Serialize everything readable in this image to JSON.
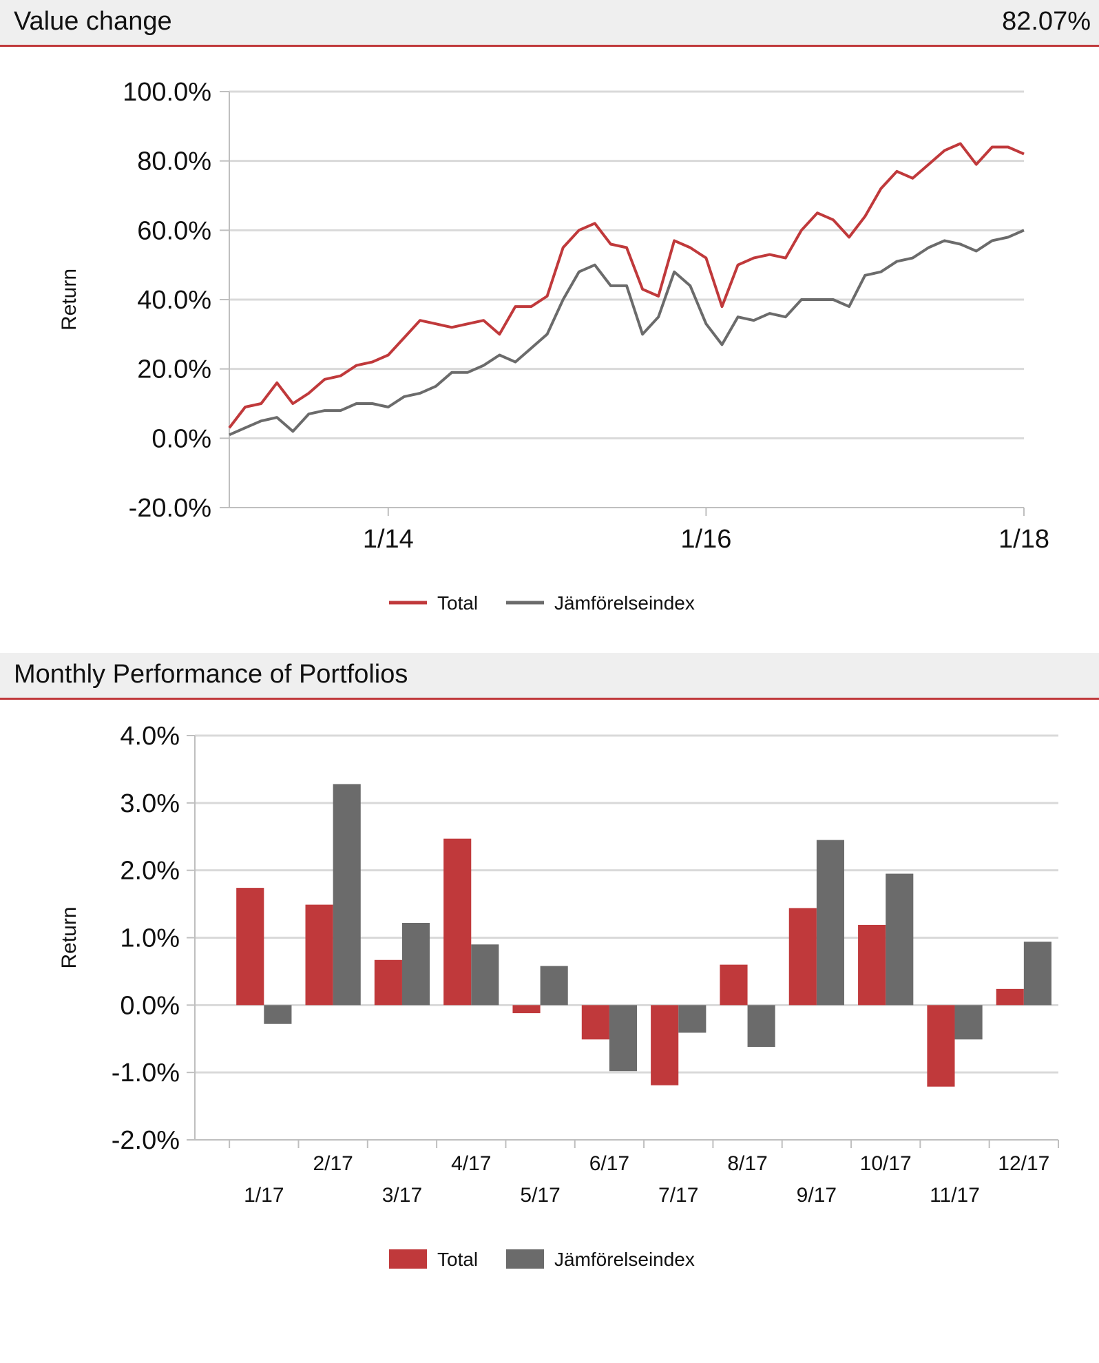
{
  "header1": {
    "title": "Value change",
    "value": "82.07%"
  },
  "header2": {
    "title": "Monthly Performance of Portfolios"
  },
  "colors": {
    "total": "#c0393b",
    "index": "#6b6b6b",
    "grid": "#d9d9d9",
    "axis": "#bfbfbf"
  },
  "chart_data": [
    {
      "type": "line",
      "ylabel": "Return",
      "ylim": [
        -20,
        100
      ],
      "yticks": [
        "100.0%",
        "80.0%",
        "60.0%",
        "40.0%",
        "20.0%",
        "0.0%",
        "-20.0%"
      ],
      "ytick_values": [
        100,
        80,
        60,
        40,
        20,
        0,
        -20
      ],
      "xlim": [
        2013.0,
        2018.0
      ],
      "xticks": [
        "1/14",
        "1/16",
        "1/18"
      ],
      "xtick_values": [
        2014.0,
        2016.0,
        2018.0
      ],
      "legend": [
        "Total",
        "Jämförelseindex"
      ],
      "legend_position": "bottom",
      "grid": true,
      "series": [
        {
          "name": "Total",
          "x": [
            2013.0,
            2013.1,
            2013.2,
            2013.3,
            2013.4,
            2013.5,
            2013.6,
            2013.7,
            2013.8,
            2013.9,
            2014.0,
            2014.1,
            2014.2,
            2014.3,
            2014.4,
            2014.5,
            2014.6,
            2014.7,
            2014.8,
            2014.9,
            2015.0,
            2015.1,
            2015.2,
            2015.3,
            2015.4,
            2015.5,
            2015.6,
            2015.7,
            2015.8,
            2015.9,
            2016.0,
            2016.1,
            2016.2,
            2016.3,
            2016.4,
            2016.5,
            2016.6,
            2016.7,
            2016.8,
            2016.9,
            2017.0,
            2017.1,
            2017.2,
            2017.3,
            2017.4,
            2017.5,
            2017.6,
            2017.7,
            2017.8,
            2017.9,
            2018.0
          ],
          "values": [
            3,
            9,
            10,
            16,
            10,
            13,
            17,
            18,
            21,
            22,
            24,
            29,
            34,
            33,
            32,
            33,
            34,
            30,
            38,
            38,
            41,
            55,
            60,
            62,
            56,
            55,
            43,
            41,
            57,
            55,
            52,
            38,
            50,
            52,
            53,
            52,
            60,
            65,
            63,
            58,
            64,
            72,
            77,
            75,
            79,
            83,
            85,
            79,
            84,
            84,
            82
          ]
        },
        {
          "name": "Jämförelseindex",
          "x": [
            2013.0,
            2013.1,
            2013.2,
            2013.3,
            2013.4,
            2013.5,
            2013.6,
            2013.7,
            2013.8,
            2013.9,
            2014.0,
            2014.1,
            2014.2,
            2014.3,
            2014.4,
            2014.5,
            2014.6,
            2014.7,
            2014.8,
            2014.9,
            2015.0,
            2015.1,
            2015.2,
            2015.3,
            2015.4,
            2015.5,
            2015.6,
            2015.7,
            2015.8,
            2015.9,
            2016.0,
            2016.1,
            2016.2,
            2016.3,
            2016.4,
            2016.5,
            2016.6,
            2016.7,
            2016.8,
            2016.9,
            2017.0,
            2017.1,
            2017.2,
            2017.3,
            2017.4,
            2017.5,
            2017.6,
            2017.7,
            2017.8,
            2017.9,
            2018.0
          ],
          "values": [
            1,
            3,
            5,
            6,
            2,
            7,
            8,
            8,
            10,
            10,
            9,
            12,
            13,
            15,
            19,
            19,
            21,
            24,
            22,
            26,
            30,
            40,
            48,
            50,
            44,
            44,
            30,
            35,
            48,
            44,
            33,
            27,
            35,
            34,
            36,
            35,
            40,
            40,
            40,
            38,
            47,
            48,
            51,
            52,
            55,
            57,
            56,
            54,
            57,
            58,
            60
          ]
        }
      ]
    },
    {
      "type": "bar",
      "ylabel": "Return",
      "ylim": [
        -2,
        4
      ],
      "yticks": [
        "4.0%",
        "3.0%",
        "2.0%",
        "1.0%",
        "0.0%",
        "-1.0%",
        "-2.0%"
      ],
      "ytick_values": [
        4,
        3,
        2,
        1,
        0,
        -1,
        -2
      ],
      "categories": [
        "1/17",
        "2/17",
        "3/17",
        "4/17",
        "5/17",
        "6/17",
        "7/17",
        "8/17",
        "9/17",
        "10/17",
        "11/17",
        "12/17"
      ],
      "legend": [
        "Total",
        "Jämförelseindex"
      ],
      "legend_position": "bottom",
      "grid": true,
      "series": [
        {
          "name": "Total",
          "values": [
            1.74,
            1.49,
            0.67,
            2.47,
            -0.12,
            -0.51,
            -1.19,
            0.6,
            1.44,
            1.19,
            -1.21,
            0.24
          ]
        },
        {
          "name": "Jämförelseindex",
          "values": [
            -0.28,
            3.28,
            1.22,
            0.9,
            0.58,
            -0.98,
            -0.41,
            -0.62,
            2.45,
            1.95,
            -0.51,
            0.94
          ]
        }
      ]
    }
  ]
}
